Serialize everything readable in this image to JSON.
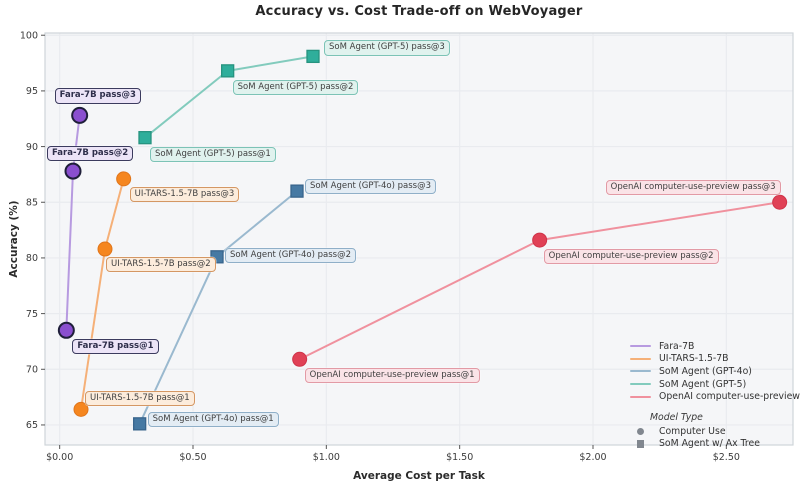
{
  "figure": {
    "title": "Accuracy vs. Cost Trade-off on WebVoyager",
    "x_axis_title": "Average Cost per Task",
    "y_axis_title": "Accuracy (%)"
  },
  "chart_data": {
    "type": "line",
    "title": "Accuracy vs. Cost Trade-off on WebVoyager",
    "xlabel": "Average Cost per Task",
    "ylabel": "Accuracy (%)",
    "xlim": [
      -0.055,
      2.75
    ],
    "ylim": [
      63.2,
      100.2
    ],
    "x_ticks": [
      0,
      0.5,
      1.0,
      1.5,
      2.0,
      2.5
    ],
    "x_tick_labels": [
      "$0.00",
      "$0.50",
      "$1.00",
      "$1.50",
      "$2.00",
      "$2.50"
    ],
    "y_ticks": [
      65,
      70,
      75,
      80,
      85,
      90,
      95,
      100
    ],
    "grid": true,
    "legend_position": "lower-right",
    "colors": {
      "plot_bg": "#f5f6f8",
      "grid": "#e9ebef",
      "spine": "#cfd4d9",
      "tick_color": "#555555",
      "tick_text": "#3c3c3c",
      "legend_marker": "#81878f",
      "title_text": "#262626"
    },
    "series": [
      {
        "name": "Fara-7B",
        "model_type": "Computer Use",
        "marker": "circle",
        "marker_size": 7.5,
        "edge_width": 2,
        "color": "#8a4fcf",
        "line_color": "#b79ae0",
        "edge_color": "#1f1f3a",
        "label_bg": "#ece4f7",
        "label_border": "#3b3b5e",
        "label_bold": true,
        "points": [
          {
            "label": "Fara-7B pass@1",
            "x": 0.025,
            "y": 73.5,
            "label_dx": 6,
            "label_dy": 9
          },
          {
            "label": "Fara-7B pass@2",
            "x": 0.05,
            "y": 87.8,
            "label_dx": -26,
            "label_dy": -25
          },
          {
            "label": "Fara-7B pass@3",
            "x": 0.075,
            "y": 92.8,
            "label_dx": -25,
            "label_dy": -27
          }
        ]
      },
      {
        "name": "UI-TARS-1.5-7B",
        "model_type": "Computer Use",
        "marker": "circle",
        "marker_size": 7,
        "edge_width": 1,
        "color": "#f5861f",
        "line_color": "#f5b078",
        "edge_color": "#e0751a",
        "label_bg": "#fcecdc",
        "label_border": "#d49763",
        "label_bold": false,
        "points": [
          {
            "label": "UI-TARS-1.5-7B pass@1",
            "x": 0.08,
            "y": 66.4,
            "label_dx": 4,
            "label_dy": -18
          },
          {
            "label": "UI-TARS-1.5-7B pass@2",
            "x": 0.17,
            "y": 80.8,
            "label_dx": 1,
            "label_dy": 8
          },
          {
            "label": "UI-TARS-1.5-7B pass@3",
            "x": 0.24,
            "y": 87.1,
            "label_dx": 6,
            "label_dy": 8
          }
        ]
      },
      {
        "name": "SoM Agent (GPT-4o)",
        "model_type": "SoM Agent w/ Ax Tree",
        "marker": "square",
        "marker_size": 12,
        "edge_width": 1.3,
        "color": "#4679a3",
        "line_color": "#9ab9cf",
        "edge_color": "#38648c",
        "label_bg": "#e3ecf4",
        "label_border": "#8fafc8",
        "label_bold": false,
        "points": [
          {
            "label": "SoM Agent (GPT-4o) pass@1",
            "x": 0.3,
            "y": 65.1,
            "label_dx": 8,
            "label_dy": -12
          },
          {
            "label": "SoM Agent (GPT-4o) pass@2",
            "x": 0.59,
            "y": 80.1,
            "label_dx": 8,
            "label_dy": -9
          },
          {
            "label": "SoM Agent (GPT-4o) pass@3",
            "x": 0.89,
            "y": 86.0,
            "label_dx": 8,
            "label_dy": -12
          }
        ]
      },
      {
        "name": "SoM Agent (GPT-5)",
        "model_type": "SoM Agent w/ Ax Tree",
        "marker": "square",
        "marker_size": 12,
        "edge_width": 1.3,
        "color": "#2fae9b",
        "line_color": "#82cbbd",
        "edge_color": "#26937f",
        "label_bg": "#e0f2ee",
        "label_border": "#7cc3b6",
        "label_bold": false,
        "points": [
          {
            "label": "SoM Agent (GPT-5) pass@1",
            "x": 0.32,
            "y": 90.8,
            "label_dx": 5,
            "label_dy": 9
          },
          {
            "label": "SoM Agent (GPT-5) pass@2",
            "x": 0.63,
            "y": 96.8,
            "label_dx": 5,
            "label_dy": 9
          },
          {
            "label": "SoM Agent (GPT-5) pass@3",
            "x": 0.95,
            "y": 98.1,
            "label_dx": 11,
            "label_dy": -16
          }
        ]
      },
      {
        "name": "OpenAI computer-use-preview",
        "model_type": "Computer Use",
        "marker": "circle",
        "marker_size": 7,
        "edge_width": 1,
        "color": "#e04156",
        "line_color": "#f0919e",
        "edge_color": "#cf3349",
        "label_bg": "#fae3e7",
        "label_border": "#e29aa5",
        "label_bold": false,
        "points": [
          {
            "label": "OpenAI computer-use-preview pass@1",
            "x": 0.9,
            "y": 70.9,
            "label_dx": 5,
            "label_dy": 9
          },
          {
            "label": "OpenAI computer-use-preview pass@2",
            "x": 1.8,
            "y": 81.6,
            "label_dx": 4,
            "label_dy": 9
          },
          {
            "label": "OpenAI computer-use-preview pass@3",
            "x": 2.7,
            "y": 85.0,
            "label_dx": -174,
            "label_dy": -22
          }
        ]
      }
    ],
    "marker_legend": {
      "title": "Model Type",
      "items": [
        {
          "marker": "circle",
          "label": "Computer Use"
        },
        {
          "marker": "square",
          "label": "SoM Agent w/ Ax Tree"
        }
      ]
    }
  }
}
